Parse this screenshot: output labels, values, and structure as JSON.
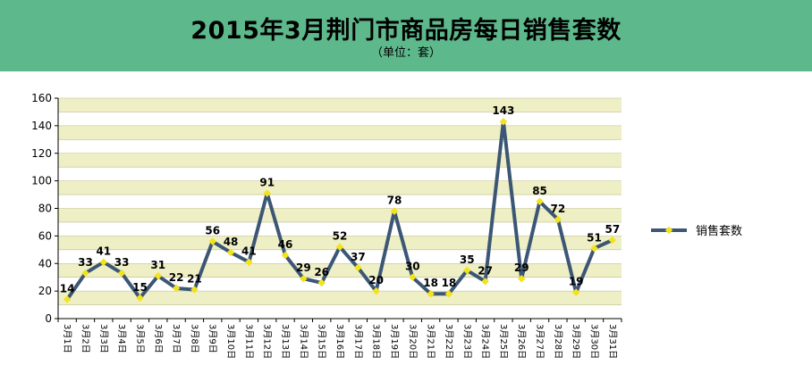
{
  "header": {
    "title": "2015年3月荆门市商品房每日销售套数",
    "subtitle": "（单位：套）"
  },
  "colors": {
    "header_bg": "#5db98c",
    "band_fill": "#efefc6",
    "line": "#3c5675",
    "marker": "#f2e31b"
  },
  "chart_data": {
    "type": "line",
    "title": "2015年3月荆门市商品房每日销售套数",
    "subtitle": "（单位：套）",
    "categories": [
      "3月1日",
      "3月2日",
      "3月3日",
      "3月4日",
      "3月5日",
      "3月6日",
      "3月7日",
      "3月8日",
      "3月9日",
      "3月10日",
      "3月11日",
      "3月12日",
      "3月13日",
      "3月14日",
      "3月15日",
      "3月16日",
      "3月17日",
      "3月18日",
      "3月19日",
      "3月20日",
      "3月21日",
      "3月22日",
      "3月23日",
      "3月24日",
      "3月25日",
      "3月26日",
      "3月27日",
      "3月28日",
      "3月29日",
      "3月30日",
      "3月31日"
    ],
    "series": [
      {
        "name": "销售套数",
        "values": [
          14,
          33,
          41,
          33,
          15,
          31,
          22,
          21,
          56,
          48,
          41,
          91,
          46,
          29,
          26,
          52,
          37,
          20,
          78,
          30,
          18,
          18,
          35,
          27,
          143,
          29,
          85,
          72,
          19,
          51,
          57
        ]
      }
    ],
    "ylim": [
      0,
      160
    ],
    "yticks": [
      0,
      20,
      40,
      60,
      80,
      100,
      120,
      140,
      160
    ],
    "grid": true,
    "legend": "right"
  }
}
